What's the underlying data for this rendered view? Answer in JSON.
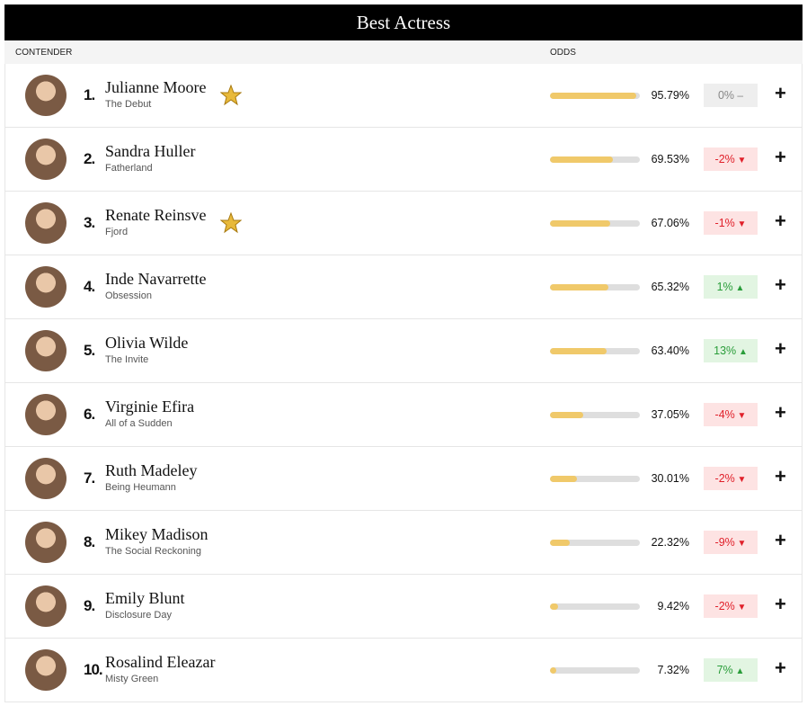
{
  "header": {
    "title": "Best Actress",
    "columns": [
      "CONTENDER",
      "ODDS"
    ]
  },
  "rows": [
    {
      "rank": "1.",
      "name": "Julianne Moore",
      "film": "The Debut",
      "star": true,
      "odds": {
        "value": 95.79,
        "label": "95.79%"
      },
      "change": "0%"
    },
    {
      "rank": "2.",
      "name": "Sandra Huller",
      "film": "Fatherland",
      "star": false,
      "odds": {
        "value": 69.53,
        "label": "69.53%"
      },
      "change": "-2%"
    },
    {
      "rank": "3.",
      "name": "Renate Reinsve",
      "film": "Fjord",
      "star": true,
      "odds": {
        "value": 67.06,
        "label": "67.06%"
      },
      "change": "-1%"
    },
    {
      "rank": "4.",
      "name": "Inde Navarrette",
      "film": "Obsession",
      "star": false,
      "odds": {
        "value": 65.32,
        "label": "65.32%"
      },
      "change": "1%"
    },
    {
      "rank": "5.",
      "name": "Olivia Wilde",
      "film": "The Invite",
      "star": false,
      "odds": {
        "value": 63.4,
        "label": "63.40%"
      },
      "change": "13%"
    },
    {
      "rank": "6.",
      "name": "Virginie Efira",
      "film": "All of a Sudden",
      "star": false,
      "odds": {
        "value": 37.05,
        "label": "37.05%"
      },
      "change": "-4%"
    },
    {
      "rank": "7.",
      "name": "Ruth Madeley",
      "film": "Being Heumann",
      "star": false,
      "odds": {
        "value": 30.01,
        "label": "30.01%"
      },
      "change": "-2%"
    },
    {
      "rank": "8.",
      "name": "Mikey Madison",
      "film": "The Social Reckoning",
      "star": false,
      "odds": {
        "value": 22.32,
        "label": "22.32%"
      },
      "change": "-9%"
    },
    {
      "rank": "9.",
      "name": "Emily Blunt",
      "film": "Disclosure Day",
      "star": false,
      "odds": {
        "value": 9.42,
        "label": "9.42%"
      },
      "change": "-2%"
    },
    {
      "rank": "10.",
      "name": "Rosalind Eleazar",
      "film": "Misty Green",
      "star": false,
      "odds": {
        "value": 7.32,
        "label": "7.32%"
      },
      "change": "7%"
    }
  ]
}
